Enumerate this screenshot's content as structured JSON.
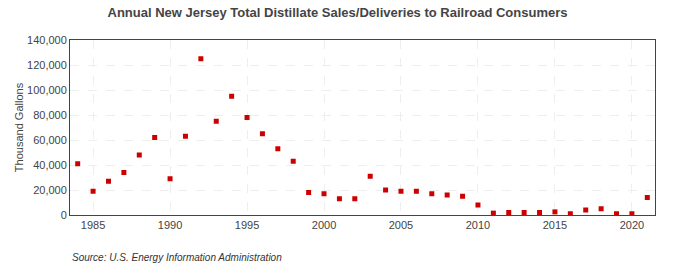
{
  "chart_data": {
    "type": "scatter",
    "title": "Annual New Jersey Total Distillate Sales/Deliveries to Railroad Consumers",
    "ylabel": "Thousand Gallons",
    "annotations": [
      "Source: U.S. Energy Information Administration"
    ],
    "x": [
      1984,
      1985,
      1986,
      1987,
      1988,
      1989,
      1990,
      1991,
      1992,
      1993,
      1994,
      1995,
      1996,
      1997,
      1998,
      1999,
      2000,
      2001,
      2002,
      2003,
      2004,
      2005,
      2006,
      2007,
      2008,
      2009,
      2010,
      2011,
      2012,
      2013,
      2014,
      2015,
      2016,
      2017,
      2018,
      2019,
      2020,
      2021
    ],
    "values": [
      41000,
      19000,
      27000,
      34000,
      48000,
      62000,
      29000,
      63000,
      125000,
      75000,
      95000,
      78000,
      65000,
      53000,
      43000,
      18000,
      17000,
      13000,
      13000,
      31000,
      20000,
      19000,
      19000,
      17000,
      16000,
      15000,
      8000,
      1500,
      2000,
      2000,
      2000,
      2500,
      1000,
      4000,
      5000,
      1000,
      1000,
      14000
    ],
    "color": "#cc0000",
    "marker": "square",
    "xlim": [
      1983.5,
      2021.5
    ],
    "ylim": [
      0,
      140000
    ],
    "xticks": [
      1985,
      1990,
      1995,
      2000,
      2005,
      2010,
      2015,
      2020
    ],
    "yticks": [
      0,
      {
        "value": 20000,
        "label": "20,000"
      },
      {
        "value": 40000,
        "label": "40,000"
      },
      {
        "value": 60000,
        "label": "60,000"
      },
      {
        "value": 80000,
        "label": "80,000"
      },
      {
        "value": 100000,
        "label": "100,000"
      },
      {
        "value": 120000,
        "label": "120,000"
      },
      {
        "value": 140000,
        "label": "140,000"
      }
    ],
    "grid": true
  }
}
